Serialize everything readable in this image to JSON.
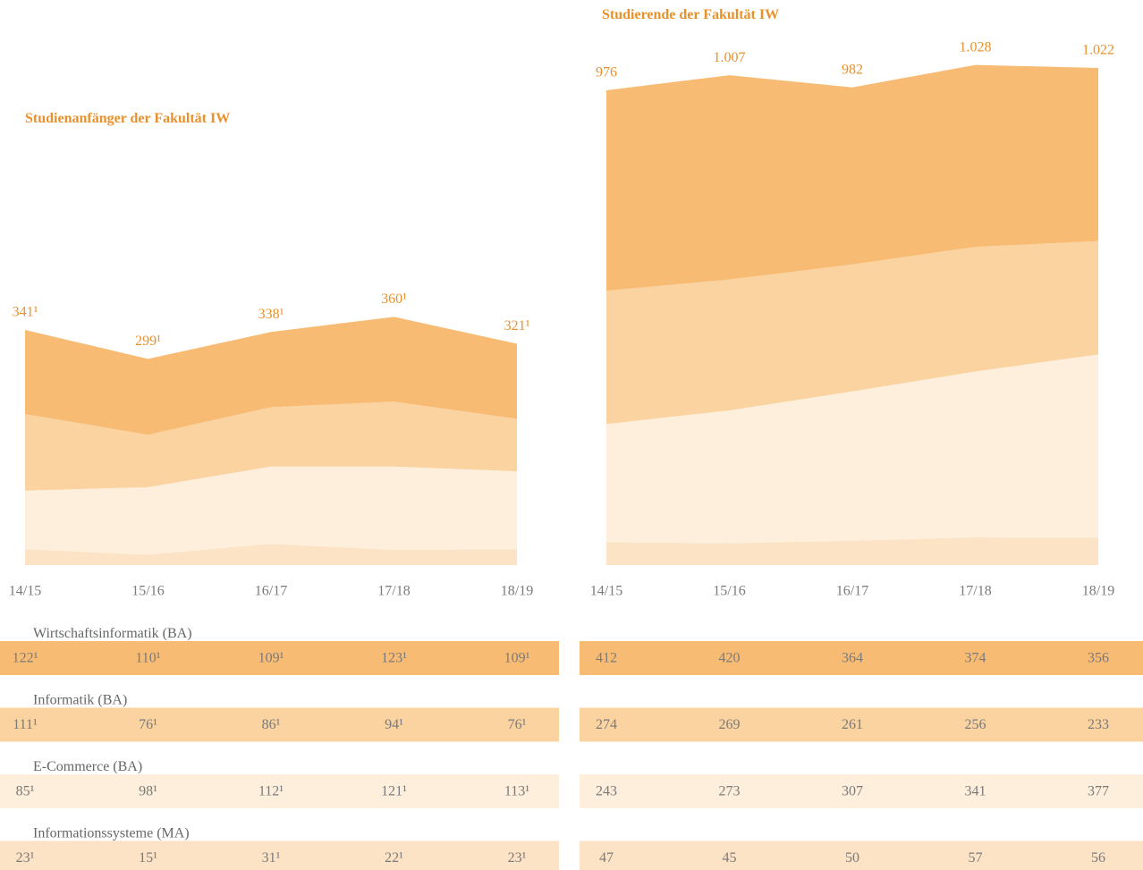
{
  "chart_data": [
    {
      "type": "area",
      "title": "Studienanfänger der Fakultät IW",
      "categories": [
        "14/15",
        "15/16",
        "16/17",
        "17/18",
        "18/19"
      ],
      "ylim": [
        0,
        752
      ],
      "totals": [
        341,
        299,
        338,
        360,
        321
      ],
      "total_labels": [
        "341¹",
        "299¹",
        "338¹",
        "360¹",
        "321¹"
      ],
      "series": [
        {
          "name": "Wirtschaftsinformatik (BA)",
          "color": "#f8bb74",
          "values": [
            122,
            110,
            109,
            123,
            109
          ],
          "value_labels": [
            "122¹",
            "110¹",
            "109¹",
            "123¹",
            "109¹"
          ]
        },
        {
          "name": "Informatik (BA)",
          "color": "#fad3a0",
          "values": [
            111,
            76,
            86,
            94,
            76
          ],
          "value_labels": [
            "111¹",
            "76¹",
            "86¹",
            "94¹",
            "76¹"
          ]
        },
        {
          "name": "E-Commerce (BA)",
          "color": "#fdefdc",
          "values": [
            85,
            98,
            112,
            121,
            113
          ],
          "value_labels": [
            "85¹",
            "98¹",
            "112¹",
            "121¹",
            "113¹"
          ]
        },
        {
          "name": "Informationssysteme (MA)",
          "color": "#fce3c6",
          "values": [
            23,
            15,
            31,
            22,
            23
          ],
          "value_labels": [
            "23¹",
            "15¹",
            "31¹",
            "22¹",
            "23¹"
          ]
        }
      ]
    },
    {
      "type": "area",
      "title": "Studierende der Fakultät IW",
      "categories": [
        "14/15",
        "15/16",
        "16/17",
        "17/18",
        "18/19"
      ],
      "ylim": [
        0,
        1066
      ],
      "totals": [
        976,
        1007,
        982,
        1028,
        1022
      ],
      "total_labels": [
        "976",
        "1.007",
        "982",
        "1.028",
        "1.022"
      ],
      "series": [
        {
          "color": "#f8bb74",
          "values": [
            412,
            420,
            364,
            374,
            356
          ]
        },
        {
          "color": "#fad3a0",
          "values": [
            274,
            269,
            261,
            256,
            233
          ]
        },
        {
          "color": "#fdefdc",
          "values": [
            243,
            273,
            307,
            341,
            377
          ]
        },
        {
          "color": "#fce3c6",
          "values": [
            47,
            45,
            50,
            57,
            56
          ]
        }
      ]
    }
  ]
}
